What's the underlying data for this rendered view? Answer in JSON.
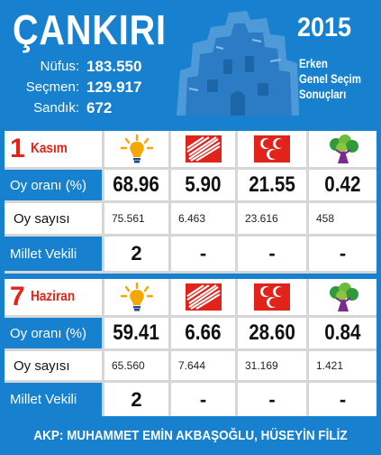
{
  "header": {
    "city": "ÇANKIRI",
    "year": "2015",
    "description": [
      "Erken",
      "Genel Seçim",
      "Sonuçları"
    ],
    "stats": [
      {
        "label": "Nüfus:",
        "value": "183.550"
      },
      {
        "label": "Seçmen:",
        "value": "129.917"
      },
      {
        "label": "Sandık:",
        "value": "672"
      }
    ]
  },
  "row_labels": {
    "share": "Oy oranı (%)",
    "votes": "Oy sayısı",
    "seats": "Millet Vekili"
  },
  "parties": [
    {
      "logo": "akp-lightbulb-icon",
      "color": "#f5a800"
    },
    {
      "logo": "chp-six-arrows-icon",
      "color": "#e2231a"
    },
    {
      "logo": "mhp-three-crescents-icon",
      "color": "#e2231a"
    },
    {
      "logo": "hdp-tree-icon",
      "color": "#2e9a3a"
    }
  ],
  "elections": [
    {
      "day": "1",
      "month": "Kasım",
      "shares": [
        "68.96",
        "5.90",
        "21.55",
        "0.42"
      ],
      "votes": [
        "75.561",
        "6.463",
        "23.616",
        "458"
      ],
      "seats": [
        "2",
        "-",
        "-",
        "-"
      ]
    },
    {
      "day": "7",
      "month": "Haziran",
      "shares": [
        "59.41",
        "6.66",
        "28.60",
        "0.84"
      ],
      "votes": [
        "65.560",
        "7.644",
        "31.169",
        "1.421"
      ],
      "seats": [
        "2",
        "-",
        "-",
        "-"
      ]
    }
  ],
  "footer": "AKP: MUHAMMET EMİN AKBAŞOĞLU, HÜSEYİN FİLİZ"
}
